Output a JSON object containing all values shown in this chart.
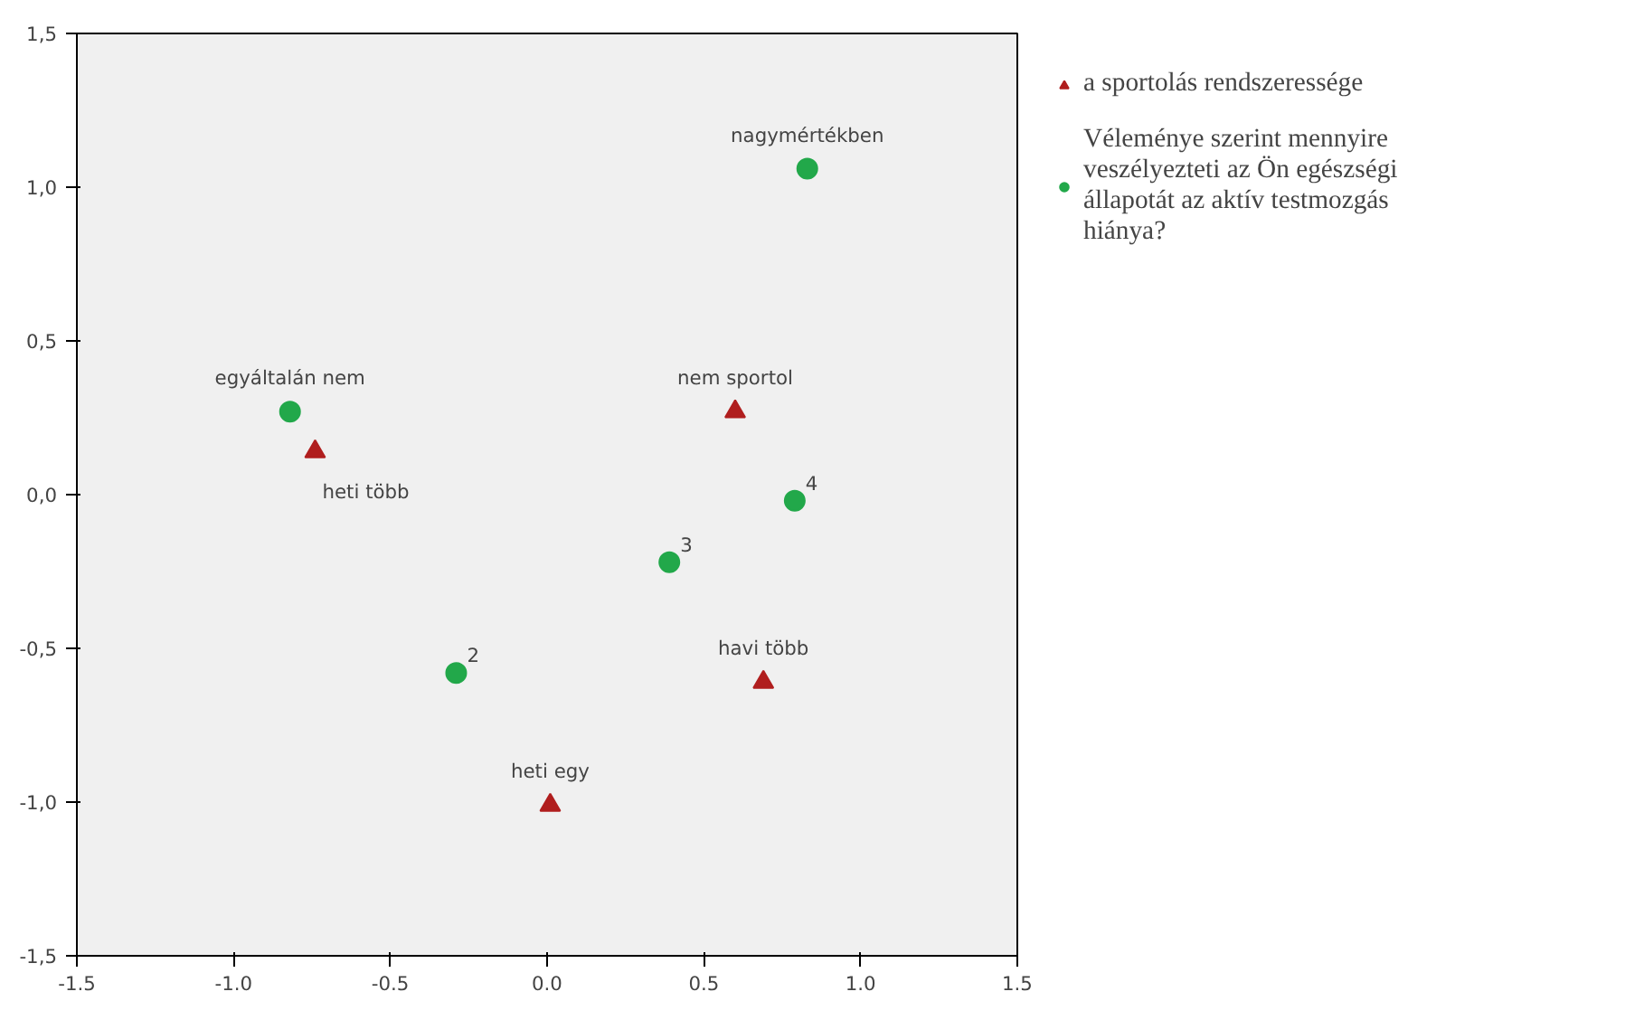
{
  "chart_data": {
    "type": "scatter",
    "series": [
      {
        "name": "a sportolás rendszeressége",
        "color": "#b01e1e",
        "marker": "triangle",
        "x": [
          0.6,
          -0.74,
          0.69,
          0.01
        ],
        "values": [
          0.27,
          0.14,
          -0.61,
          -1.01
        ]
      },
      {
        "name": "Véleménye szerint mennyire veszélyezteti az Ön egészségi állapotát az aktív testmozgás hiánya?",
        "color": "#22a84a",
        "marker": "circle",
        "x": [
          0.83,
          -0.82,
          0.79,
          0.39,
          -0.29
        ],
        "values": [
          1.06,
          0.27,
          -0.02,
          -0.22,
          -0.58
        ]
      }
    ],
    "annotations": [
      {
        "text": "nem sportol",
        "x": 0.6,
        "y": 0.27
      },
      {
        "text": "heti több",
        "x": -0.74,
        "y": 0.14
      },
      {
        "text": "havi több",
        "x": 0.69,
        "y": -0.61
      },
      {
        "text": "heti egy",
        "x": 0.01,
        "y": -1.01
      },
      {
        "text": "nagymértékben",
        "x": 0.83,
        "y": 1.06
      },
      {
        "text": "egyáltalán nem",
        "x": -0.82,
        "y": 0.27
      },
      {
        "text": "4",
        "x": 0.79,
        "y": -0.02
      },
      {
        "text": "3",
        "x": 0.39,
        "y": -0.22
      },
      {
        "text": "2",
        "x": -0.29,
        "y": -0.58
      }
    ],
    "xlim": [
      -1.5,
      1.5
    ],
    "ylim": [
      -1.5,
      1.5
    ],
    "xticks": [
      {
        "value": -1.5,
        "label": "-1.5"
      },
      {
        "value": -1.0,
        "label": "-1.0"
      },
      {
        "value": -0.5,
        "label": "-0.5"
      },
      {
        "value": 0.0,
        "label": "0.0"
      },
      {
        "value": 0.5,
        "label": "0.5"
      },
      {
        "value": 1.0,
        "label": "1.0"
      },
      {
        "value": 1.5,
        "label": "1.5"
      }
    ],
    "yticks": [
      {
        "value": -1.5,
        "label": "-1,5"
      },
      {
        "value": -1.0,
        "label": "-1,0"
      },
      {
        "value": -0.5,
        "label": "-0,5"
      },
      {
        "value": 0.0,
        "label": "0,0"
      },
      {
        "value": 0.5,
        "label": "0,5"
      },
      {
        "value": 1.0,
        "label": "1,0"
      },
      {
        "value": 1.5,
        "label": "1,5"
      }
    ],
    "grid": false,
    "legend": "right"
  }
}
